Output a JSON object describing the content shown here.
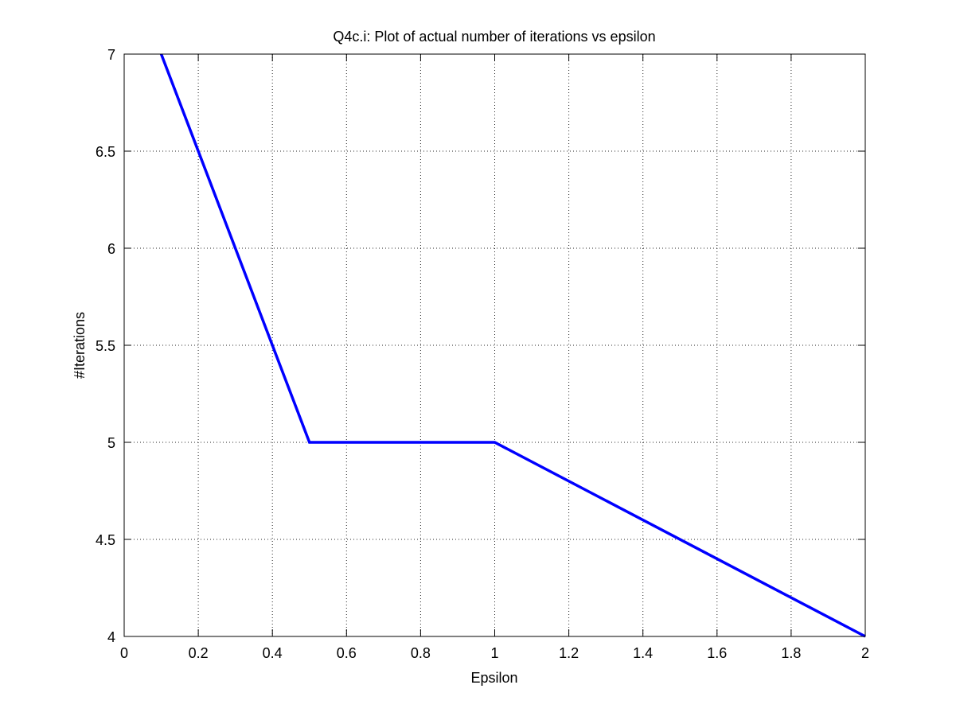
{
  "chart_data": {
    "type": "line",
    "title": "Q4c.i: Plot of actual number of iterations vs epsilon",
    "xlabel": "Epsilon",
    "ylabel": "#Iterations",
    "xlim": [
      0,
      2
    ],
    "ylim": [
      4,
      7
    ],
    "x_ticks": [
      0,
      0.2,
      0.4,
      0.6,
      0.8,
      1,
      1.2,
      1.4,
      1.6,
      1.8,
      2
    ],
    "x_tick_labels": [
      "0",
      "0.2",
      "0.4",
      "0.6",
      "0.8",
      "1",
      "1.2",
      "1.4",
      "1.6",
      "1.8",
      "2"
    ],
    "y_ticks": [
      4,
      4.5,
      5,
      5.5,
      6,
      6.5,
      7
    ],
    "y_tick_labels": [
      "4",
      "4.5",
      "5",
      "5.5",
      "6",
      "6.5",
      "7"
    ],
    "grid": true,
    "series": [
      {
        "color": "#0000ff",
        "x": [
          0.1,
          0.5,
          1,
          2
        ],
        "y": [
          7,
          5,
          5,
          4
        ]
      }
    ]
  }
}
